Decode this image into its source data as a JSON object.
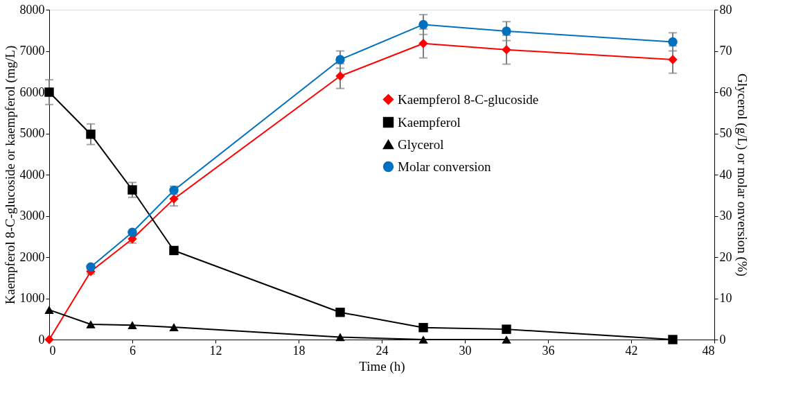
{
  "chart_data": {
    "type": "line",
    "xlabel": "Time (h)",
    "ylabel": "Kaempferol 8-C-glucoside or kaempferol (mg/L)",
    "y2label": "Glycerol (g/L) or molar onversion (%)",
    "x": [
      0,
      3,
      6,
      9,
      21,
      27,
      33,
      45
    ],
    "xlim": [
      0,
      48
    ],
    "xticks": [
      0,
      6,
      12,
      18,
      24,
      30,
      36,
      42,
      48
    ],
    "ylim": [
      0,
      8000
    ],
    "yticks": [
      0,
      1000,
      2000,
      3000,
      4000,
      5000,
      6000,
      7000,
      8000
    ],
    "y2lim": [
      0,
      80
    ],
    "y2ticks": [
      0,
      10,
      20,
      30,
      40,
      50,
      60,
      70,
      80
    ],
    "grid": false,
    "legend": "top right",
    "line_style": "solid",
    "series": [
      {
        "name": "Kaempferol 8-C-glucoside",
        "color": "#ff0000",
        "marker": "diamond",
        "values": [
          0,
          1650,
          2440,
          3410,
          6390,
          7180,
          7030,
          6790
        ],
        "errors": [
          null,
          60,
          100,
          170,
          300,
          350,
          350,
          330
        ]
      },
      {
        "name": "Kaempferol",
        "color": "#000000",
        "marker": "square",
        "values": [
          6000,
          4980,
          3630,
          2160,
          660,
          290,
          250,
          0
        ],
        "errors": [
          300,
          250,
          180,
          null,
          null,
          null,
          null,
          null
        ]
      },
      {
        "name": "Glycerol",
        "color": "#000000",
        "marker": "triangle",
        "axis": "y2",
        "values": [
          7.2,
          3.7,
          3.5,
          3.0,
          0.6,
          0,
          0,
          null
        ]
      },
      {
        "name": "Molar conversion",
        "color": "#0070c0",
        "marker": "circle",
        "axis": "y2",
        "values": [
          null,
          17.6,
          26.0,
          36.2,
          67.9,
          76.4,
          74.8,
          72.2
        ],
        "errors": [
          null,
          null,
          null,
          1.0,
          2.1,
          2.4,
          2.3,
          2.2
        ]
      }
    ]
  }
}
